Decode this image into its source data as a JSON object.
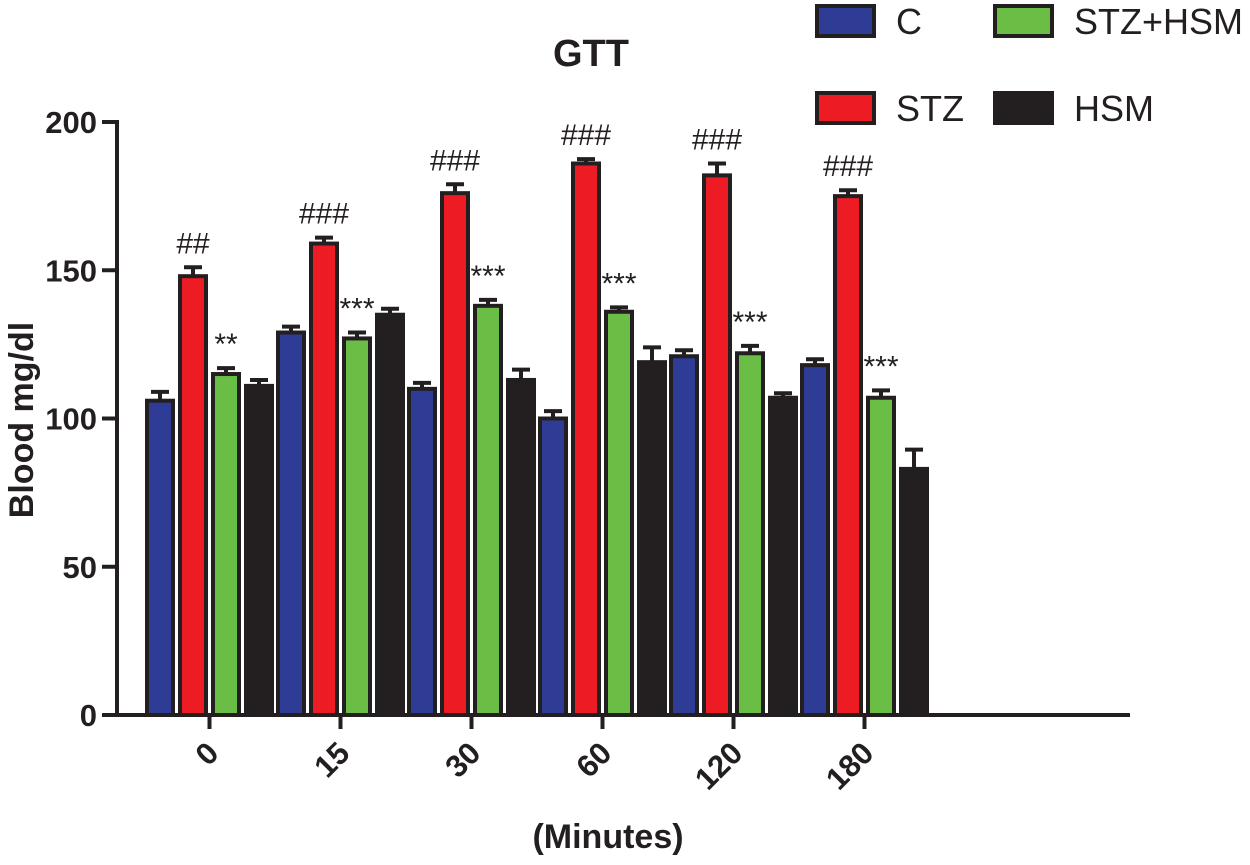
{
  "chart_data": {
    "type": "bar",
    "title": "GTT",
    "xlabel": "(Minutes)",
    "ylabel": "Blood mg/dl",
    "ylim": [
      0,
      200
    ],
    "yticks": [
      "0",
      "50",
      "100",
      "150",
      "200"
    ],
    "categories": [
      "0",
      "15",
      "30",
      "60",
      "120",
      "180"
    ],
    "series": [
      {
        "name": "C",
        "color": "#2e3c96",
        "values": [
          106,
          129,
          110,
          100,
          121,
          118
        ],
        "errors": [
          3,
          2,
          2,
          2.5,
          2,
          2
        ]
      },
      {
        "name": "STZ",
        "color": "#ed1c24",
        "values": [
          148,
          159,
          176,
          186,
          182,
          175
        ],
        "errors": [
          3,
          2,
          3,
          1.5,
          4,
          2
        ]
      },
      {
        "name": "STZ+HSM",
        "color": "#6abd45",
        "values": [
          115,
          127,
          138,
          136,
          122,
          107
        ],
        "errors": [
          2,
          2,
          2,
          1.5,
          2.5,
          2.5
        ]
      },
      {
        "name": "HSM",
        "color": "#231f20",
        "values": [
          111,
          135,
          113,
          119,
          107,
          83
        ],
        "errors": [
          2,
          2,
          3.5,
          5,
          1.5,
          6.5
        ]
      }
    ],
    "annotations": [
      {
        "category": "0",
        "series": "STZ",
        "text": "##"
      },
      {
        "category": "0",
        "series": "STZ+HSM",
        "text": "**"
      },
      {
        "category": "15",
        "series": "STZ",
        "text": "###"
      },
      {
        "category": "15",
        "series": "STZ+HSM",
        "text": "***"
      },
      {
        "category": "30",
        "series": "STZ",
        "text": "###"
      },
      {
        "category": "30",
        "series": "STZ+HSM",
        "text": "***"
      },
      {
        "category": "60",
        "series": "STZ",
        "text": "###"
      },
      {
        "category": "60",
        "series": "STZ+HSM",
        "text": "***"
      },
      {
        "category": "120",
        "series": "STZ",
        "text": "###"
      },
      {
        "category": "120",
        "series": "STZ+HSM",
        "text": "***"
      },
      {
        "category": "180",
        "series": "STZ",
        "text": "###"
      },
      {
        "category": "180",
        "series": "STZ+HSM",
        "text": "***"
      }
    ],
    "legend_position": "top-right",
    "grid": false
  }
}
